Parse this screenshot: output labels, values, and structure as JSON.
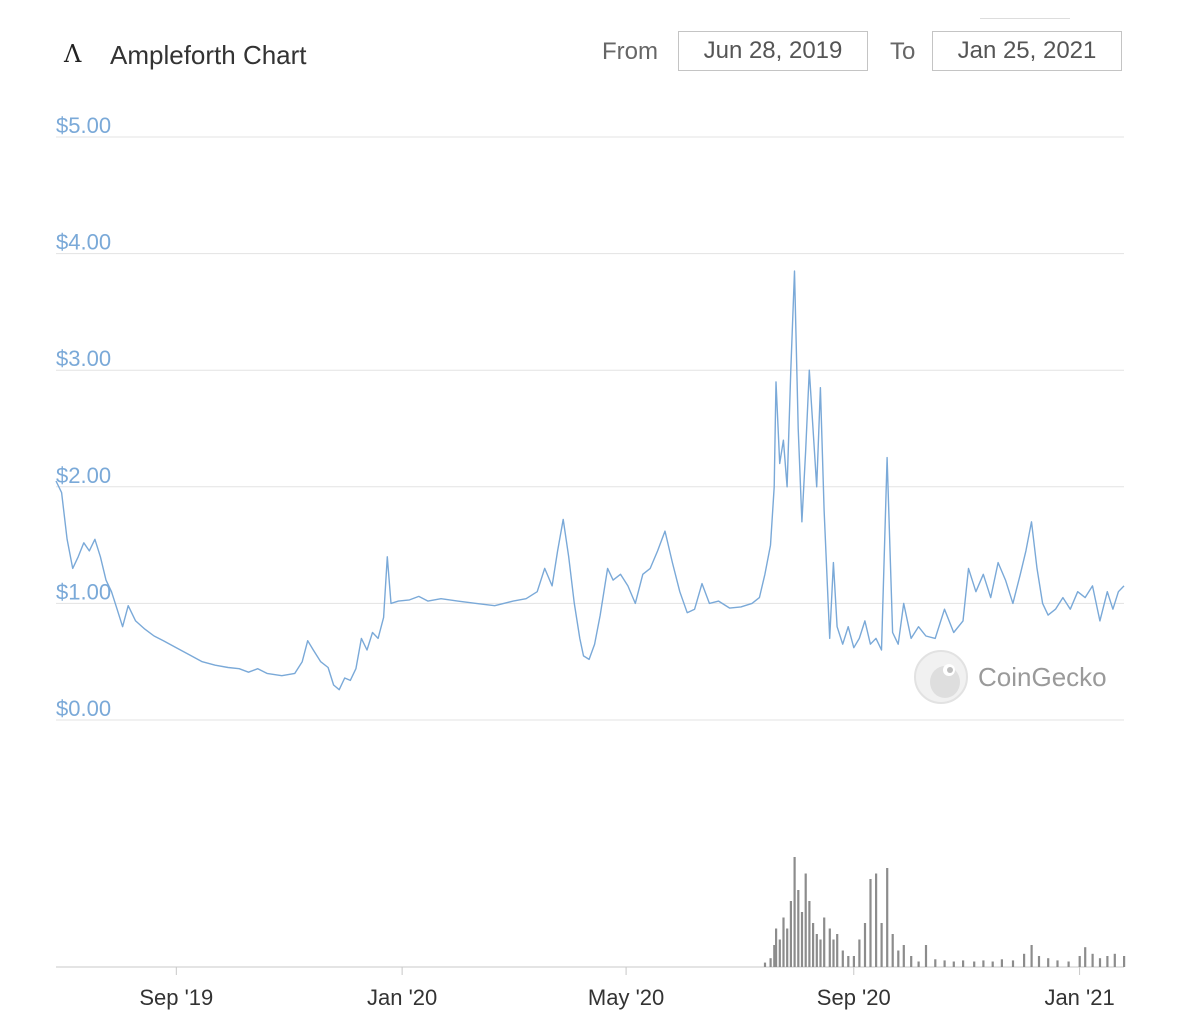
{
  "header": {
    "logo_icon": "ampleforth-logo-icon",
    "title": "Ampleforth Chart",
    "from_label": "From",
    "from_date": "Jun 28, 2019",
    "to_label": "To",
    "to_date": "Jan 25, 2021"
  },
  "watermark": {
    "text": "CoinGecko",
    "icon": "coingecko-gecko-icon"
  },
  "colors": {
    "price_line": "#7aa9d8",
    "volume_bars": "#8c8c8c",
    "gridline": "#e3e3e3",
    "axis_text": "#7aa9d8"
  },
  "chart_data": {
    "type": "line",
    "x_range": [
      "2019-06-28",
      "2021-01-25"
    ],
    "y_ticks": [
      "$0.00",
      "$1.00",
      "$2.00",
      "$3.00",
      "$4.00",
      "$5.00"
    ],
    "y_tick_values": [
      0,
      1,
      2,
      3,
      4,
      5
    ],
    "ylim": [
      0,
      5
    ],
    "x_tick_labels": [
      "Sep '19",
      "Jan '20",
      "May '20",
      "Sep '20",
      "Jan '21"
    ],
    "x_tick_dates": [
      "2019-09-01",
      "2020-01-01",
      "2020-05-01",
      "2020-09-01",
      "2021-01-01"
    ],
    "grid": true,
    "series": [
      {
        "type": "line",
        "points": [
          [
            "2019-06-28",
            2.05
          ],
          [
            "2019-07-01",
            1.95
          ],
          [
            "2019-07-04",
            1.55
          ],
          [
            "2019-07-07",
            1.3
          ],
          [
            "2019-07-10",
            1.4
          ],
          [
            "2019-07-13",
            1.52
          ],
          [
            "2019-07-16",
            1.45
          ],
          [
            "2019-07-19",
            1.55
          ],
          [
            "2019-07-22",
            1.4
          ],
          [
            "2019-07-25",
            1.2
          ],
          [
            "2019-07-28",
            1.1
          ],
          [
            "2019-07-31",
            0.95
          ],
          [
            "2019-08-03",
            0.8
          ],
          [
            "2019-08-06",
            0.98
          ],
          [
            "2019-08-10",
            0.85
          ],
          [
            "2019-08-15",
            0.78
          ],
          [
            "2019-08-20",
            0.72
          ],
          [
            "2019-08-25",
            0.68
          ],
          [
            "2019-09-01",
            0.62
          ],
          [
            "2019-09-08",
            0.56
          ],
          [
            "2019-09-15",
            0.5
          ],
          [
            "2019-09-22",
            0.47
          ],
          [
            "2019-09-29",
            0.45
          ],
          [
            "2019-10-05",
            0.44
          ],
          [
            "2019-10-10",
            0.41
          ],
          [
            "2019-10-15",
            0.44
          ],
          [
            "2019-10-20",
            0.4
          ],
          [
            "2019-10-28",
            0.38
          ],
          [
            "2019-11-04",
            0.4
          ],
          [
            "2019-11-08",
            0.5
          ],
          [
            "2019-11-11",
            0.68
          ],
          [
            "2019-11-14",
            0.6
          ],
          [
            "2019-11-18",
            0.5
          ],
          [
            "2019-11-22",
            0.45
          ],
          [
            "2019-11-25",
            0.3
          ],
          [
            "2019-11-28",
            0.26
          ],
          [
            "2019-12-01",
            0.36
          ],
          [
            "2019-12-04",
            0.34
          ],
          [
            "2019-12-07",
            0.44
          ],
          [
            "2019-12-10",
            0.7
          ],
          [
            "2019-12-13",
            0.6
          ],
          [
            "2019-12-16",
            0.75
          ],
          [
            "2019-12-19",
            0.7
          ],
          [
            "2019-12-22",
            0.88
          ],
          [
            "2019-12-24",
            1.4
          ],
          [
            "2019-12-26",
            1.0
          ],
          [
            "2019-12-30",
            1.02
          ],
          [
            "2020-01-05",
            1.03
          ],
          [
            "2020-01-10",
            1.06
          ],
          [
            "2020-01-15",
            1.02
          ],
          [
            "2020-01-22",
            1.04
          ],
          [
            "2020-01-31",
            1.02
          ],
          [
            "2020-02-10",
            1.0
          ],
          [
            "2020-02-20",
            0.98
          ],
          [
            "2020-03-01",
            1.02
          ],
          [
            "2020-03-08",
            1.04
          ],
          [
            "2020-03-14",
            1.1
          ],
          [
            "2020-03-18",
            1.3
          ],
          [
            "2020-03-22",
            1.15
          ],
          [
            "2020-03-25",
            1.45
          ],
          [
            "2020-03-28",
            1.72
          ],
          [
            "2020-03-31",
            1.4
          ],
          [
            "2020-04-03",
            1.0
          ],
          [
            "2020-04-06",
            0.7
          ],
          [
            "2020-04-08",
            0.55
          ],
          [
            "2020-04-11",
            0.52
          ],
          [
            "2020-04-14",
            0.65
          ],
          [
            "2020-04-17",
            0.9
          ],
          [
            "2020-04-21",
            1.3
          ],
          [
            "2020-04-24",
            1.2
          ],
          [
            "2020-04-28",
            1.25
          ],
          [
            "2020-05-02",
            1.15
          ],
          [
            "2020-05-06",
            1.0
          ],
          [
            "2020-05-10",
            1.25
          ],
          [
            "2020-05-14",
            1.3
          ],
          [
            "2020-05-18",
            1.45
          ],
          [
            "2020-05-22",
            1.62
          ],
          [
            "2020-05-26",
            1.35
          ],
          [
            "2020-05-30",
            1.1
          ],
          [
            "2020-06-03",
            0.92
          ],
          [
            "2020-06-07",
            0.95
          ],
          [
            "2020-06-11",
            1.17
          ],
          [
            "2020-06-15",
            1.0
          ],
          [
            "2020-06-20",
            1.02
          ],
          [
            "2020-06-26",
            0.96
          ],
          [
            "2020-07-02",
            0.97
          ],
          [
            "2020-07-08",
            1.0
          ],
          [
            "2020-07-12",
            1.05
          ],
          [
            "2020-07-15",
            1.25
          ],
          [
            "2020-07-18",
            1.5
          ],
          [
            "2020-07-20",
            2.0
          ],
          [
            "2020-07-21",
            2.9
          ],
          [
            "2020-07-23",
            2.2
          ],
          [
            "2020-07-25",
            2.4
          ],
          [
            "2020-07-27",
            2.0
          ],
          [
            "2020-07-29",
            3.0
          ],
          [
            "2020-07-31",
            3.85
          ],
          [
            "2020-08-02",
            2.5
          ],
          [
            "2020-08-04",
            1.7
          ],
          [
            "2020-08-06",
            2.3
          ],
          [
            "2020-08-08",
            3.0
          ],
          [
            "2020-08-10",
            2.5
          ],
          [
            "2020-08-12",
            2.0
          ],
          [
            "2020-08-14",
            2.85
          ],
          [
            "2020-08-16",
            1.8
          ],
          [
            "2020-08-19",
            0.7
          ],
          [
            "2020-08-21",
            1.35
          ],
          [
            "2020-08-23",
            0.8
          ],
          [
            "2020-08-26",
            0.65
          ],
          [
            "2020-08-29",
            0.8
          ],
          [
            "2020-09-01",
            0.62
          ],
          [
            "2020-09-04",
            0.7
          ],
          [
            "2020-09-07",
            0.85
          ],
          [
            "2020-09-10",
            0.65
          ],
          [
            "2020-09-13",
            0.7
          ],
          [
            "2020-09-16",
            0.6
          ],
          [
            "2020-09-19",
            2.25
          ],
          [
            "2020-09-22",
            0.75
          ],
          [
            "2020-09-25",
            0.65
          ],
          [
            "2020-09-28",
            1.0
          ],
          [
            "2020-10-02",
            0.7
          ],
          [
            "2020-10-06",
            0.8
          ],
          [
            "2020-10-10",
            0.72
          ],
          [
            "2020-10-15",
            0.7
          ],
          [
            "2020-10-20",
            0.95
          ],
          [
            "2020-10-25",
            0.75
          ],
          [
            "2020-10-30",
            0.85
          ],
          [
            "2020-11-02",
            1.3
          ],
          [
            "2020-11-06",
            1.1
          ],
          [
            "2020-11-10",
            1.25
          ],
          [
            "2020-11-14",
            1.05
          ],
          [
            "2020-11-18",
            1.35
          ],
          [
            "2020-11-22",
            1.2
          ],
          [
            "2020-11-26",
            1.0
          ],
          [
            "2020-11-30",
            1.25
          ],
          [
            "2020-12-03",
            1.45
          ],
          [
            "2020-12-06",
            1.7
          ],
          [
            "2020-12-09",
            1.3
          ],
          [
            "2020-12-12",
            1.0
          ],
          [
            "2020-12-15",
            0.9
          ],
          [
            "2020-12-19",
            0.95
          ],
          [
            "2020-12-23",
            1.05
          ],
          [
            "2020-12-27",
            0.95
          ],
          [
            "2020-12-31",
            1.1
          ],
          [
            "2021-01-04",
            1.05
          ],
          [
            "2021-01-08",
            1.15
          ],
          [
            "2021-01-12",
            0.85
          ],
          [
            "2021-01-16",
            1.1
          ],
          [
            "2021-01-19",
            0.95
          ],
          [
            "2021-01-22",
            1.1
          ],
          [
            "2021-01-25",
            1.15
          ]
        ]
      },
      {
        "type": "bar",
        "points": [
          [
            "2020-07-15",
            0.04
          ],
          [
            "2020-07-18",
            0.08
          ],
          [
            "2020-07-20",
            0.2
          ],
          [
            "2020-07-21",
            0.35
          ],
          [
            "2020-07-23",
            0.25
          ],
          [
            "2020-07-25",
            0.45
          ],
          [
            "2020-07-27",
            0.35
          ],
          [
            "2020-07-29",
            0.6
          ],
          [
            "2020-07-31",
            1.0
          ],
          [
            "2020-08-02",
            0.7
          ],
          [
            "2020-08-04",
            0.5
          ],
          [
            "2020-08-06",
            0.85
          ],
          [
            "2020-08-08",
            0.6
          ],
          [
            "2020-08-10",
            0.4
          ],
          [
            "2020-08-12",
            0.3
          ],
          [
            "2020-08-14",
            0.25
          ],
          [
            "2020-08-16",
            0.45
          ],
          [
            "2020-08-19",
            0.35
          ],
          [
            "2020-08-21",
            0.25
          ],
          [
            "2020-08-23",
            0.3
          ],
          [
            "2020-08-26",
            0.15
          ],
          [
            "2020-08-29",
            0.1
          ],
          [
            "2020-09-01",
            0.1
          ],
          [
            "2020-09-04",
            0.25
          ],
          [
            "2020-09-07",
            0.4
          ],
          [
            "2020-09-10",
            0.8
          ],
          [
            "2020-09-13",
            0.85
          ],
          [
            "2020-09-16",
            0.4
          ],
          [
            "2020-09-19",
            0.9
          ],
          [
            "2020-09-22",
            0.3
          ],
          [
            "2020-09-25",
            0.15
          ],
          [
            "2020-09-28",
            0.2
          ],
          [
            "2020-10-02",
            0.1
          ],
          [
            "2020-10-06",
            0.05
          ],
          [
            "2020-10-10",
            0.2
          ],
          [
            "2020-10-15",
            0.07
          ],
          [
            "2020-10-20",
            0.06
          ],
          [
            "2020-10-25",
            0.05
          ],
          [
            "2020-10-30",
            0.06
          ],
          [
            "2020-11-05",
            0.05
          ],
          [
            "2020-11-10",
            0.06
          ],
          [
            "2020-11-15",
            0.05
          ],
          [
            "2020-11-20",
            0.07
          ],
          [
            "2020-11-26",
            0.06
          ],
          [
            "2020-12-02",
            0.12
          ],
          [
            "2020-12-06",
            0.2
          ],
          [
            "2020-12-10",
            0.1
          ],
          [
            "2020-12-15",
            0.08
          ],
          [
            "2020-12-20",
            0.06
          ],
          [
            "2020-12-26",
            0.05
          ],
          [
            "2021-01-01",
            0.1
          ],
          [
            "2021-01-04",
            0.18
          ],
          [
            "2021-01-08",
            0.12
          ],
          [
            "2021-01-12",
            0.08
          ],
          [
            "2021-01-16",
            0.1
          ],
          [
            "2021-01-20",
            0.12
          ],
          [
            "2021-01-25",
            0.1
          ]
        ]
      }
    ]
  }
}
